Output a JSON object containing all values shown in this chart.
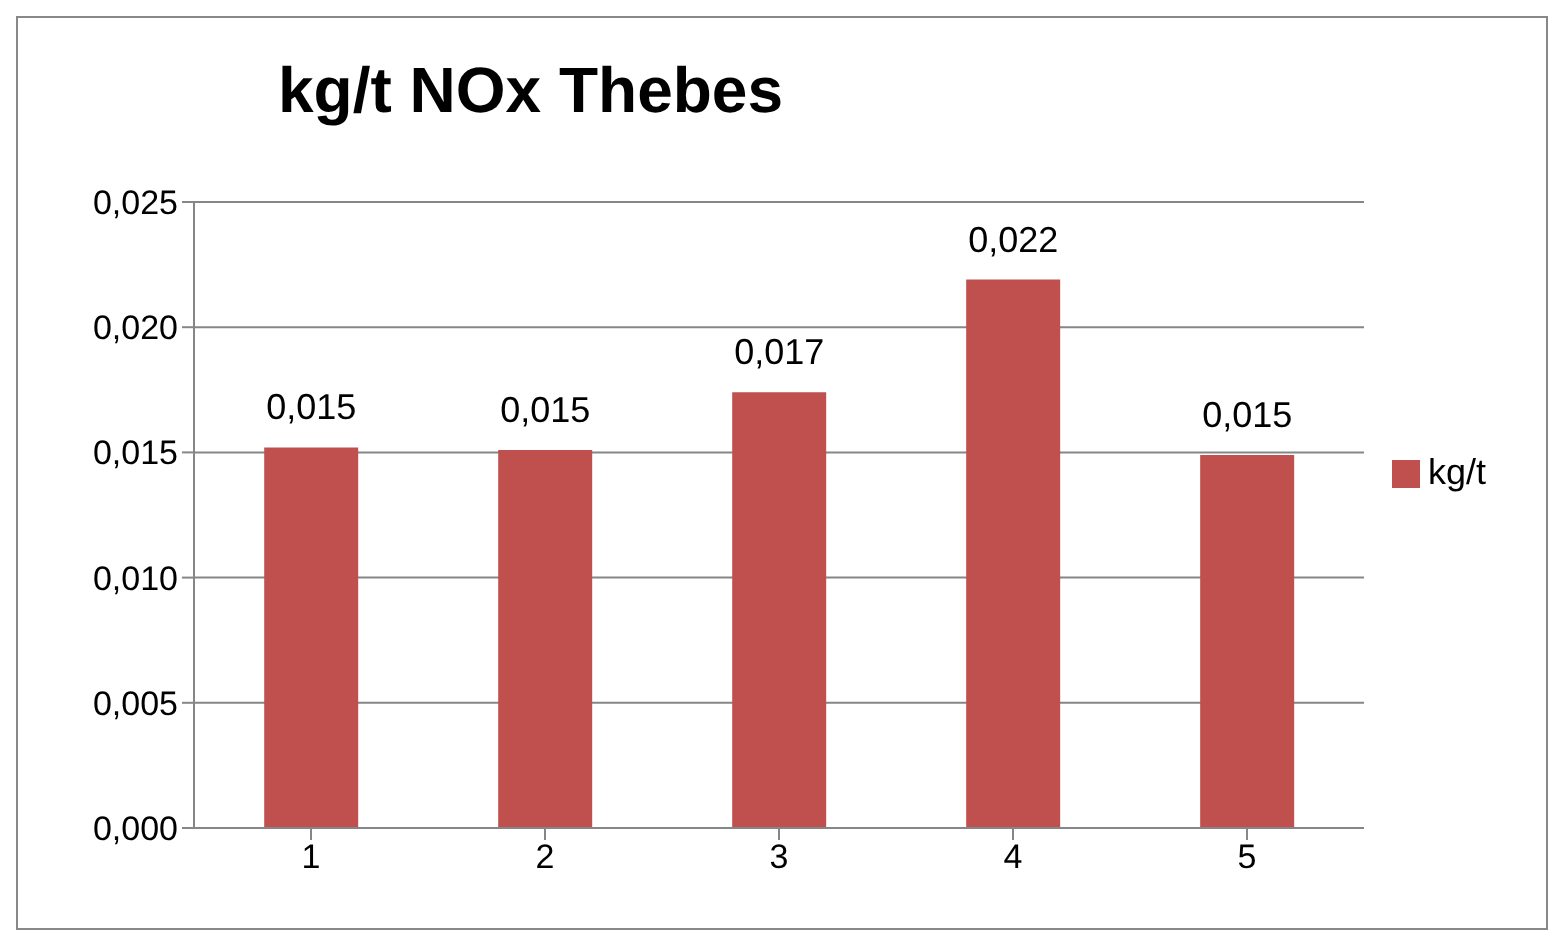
{
  "chart_data": {
    "type": "bar",
    "title": "kg/t NOx Thebes",
    "categories": [
      "1",
      "2",
      "3",
      "4",
      "5"
    ],
    "series": [
      {
        "name": "kg/t",
        "color": "#c0504d",
        "values": [
          0.0152,
          0.0151,
          0.0174,
          0.0219,
          0.0149
        ],
        "value_labels": [
          "0,015",
          "0,015",
          "0,017",
          "0,022",
          "0,015"
        ]
      }
    ],
    "ylim": [
      0,
      0.025
    ],
    "yticks": [
      {
        "value": 0,
        "label": "0,000"
      },
      {
        "value": 0.005,
        "label": "0,005"
      },
      {
        "value": 0.01,
        "label": "0,010"
      },
      {
        "value": 0.015,
        "label": "0,015"
      },
      {
        "value": 0.02,
        "label": "0,020"
      },
      {
        "value": 0.025,
        "label": "0,025"
      }
    ],
    "grid": "y",
    "legend": "right"
  }
}
